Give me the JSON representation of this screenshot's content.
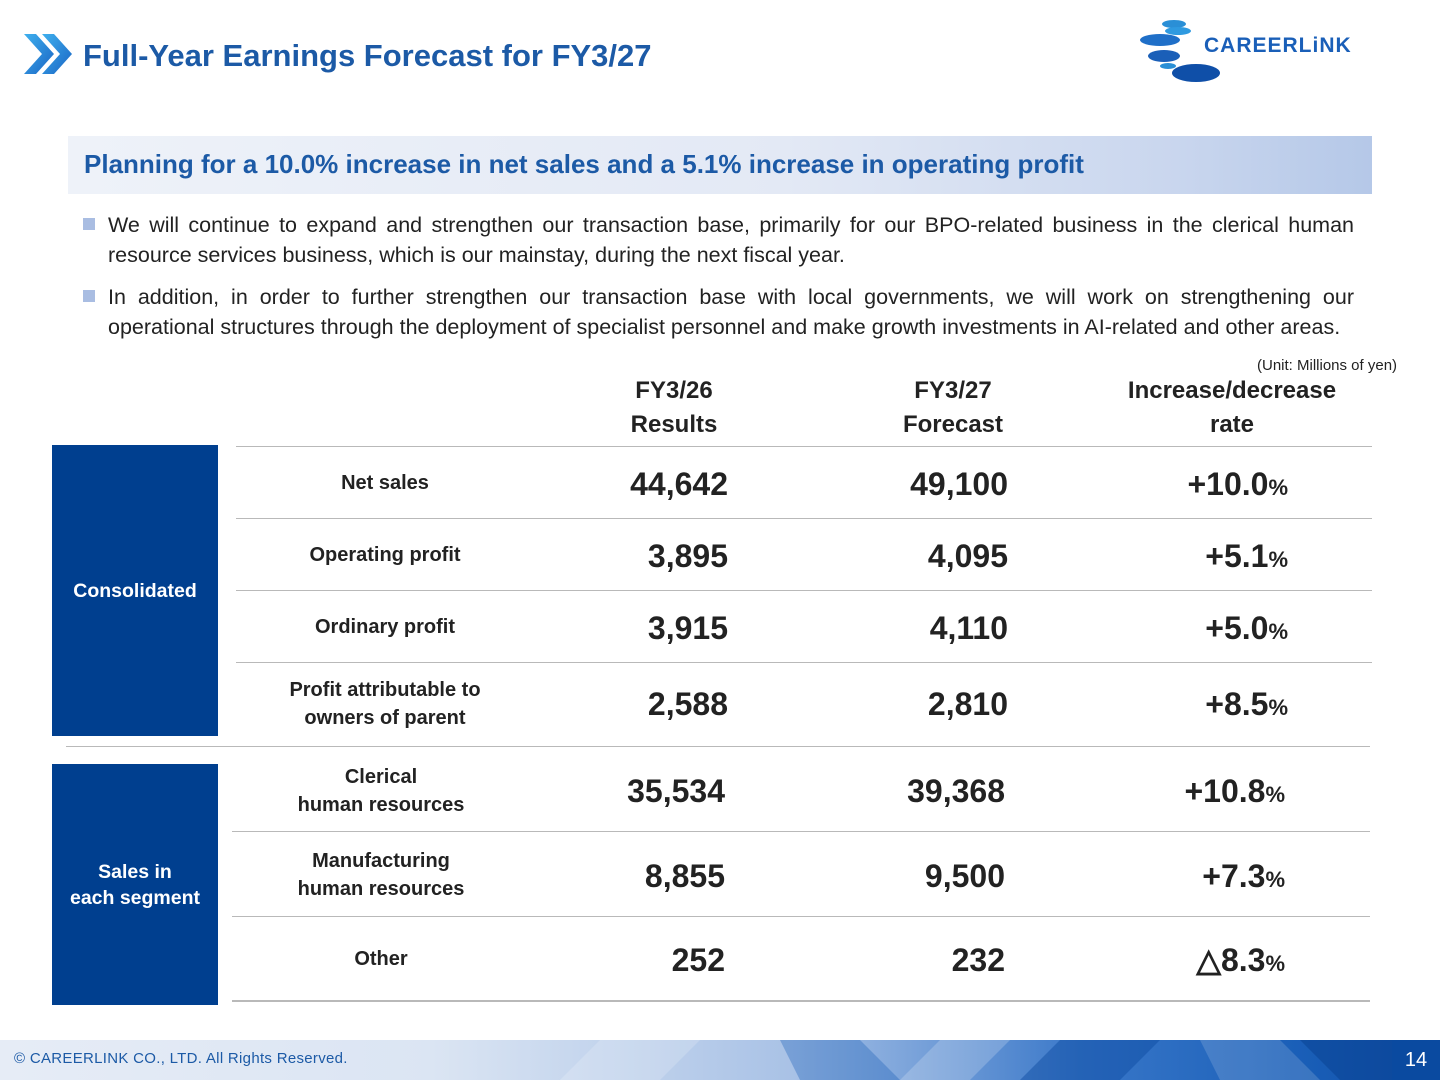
{
  "header": {
    "title": "Full-Year Earnings Forecast for FY3/27",
    "logo_text": "CAREERLiNK"
  },
  "band": {
    "text": "Planning for a 10.0% increase in net sales and a 5.1% increase in operating profit"
  },
  "bullets": [
    "We will continue to expand and strengthen our transaction base, primarily for our BPO-related business in the clerical human resource services business, which is our mainstay, during the next fiscal year.",
    "In addition, in order to further strengthen our transaction base with local governments, we will work on strengthening our operational structures through the deployment of specialist personnel and make growth investments in AI-related and other areas."
  ],
  "unit_note": "(Unit: Millions of yen)",
  "table": {
    "columns": [
      {
        "line1": "FY3/26",
        "line2": "Results"
      },
      {
        "line1": "FY3/27",
        "line2": "Forecast"
      },
      {
        "line1": "Increase/decrease",
        "line2": "rate"
      }
    ],
    "consolidated": {
      "label": "Consolidated",
      "rows": [
        {
          "label": "Net sales",
          "fy26": "44,642",
          "fy27": "49,100",
          "rate": "+10.0",
          "unit": "%"
        },
        {
          "label": "Operating profit",
          "fy26": "3,895",
          "fy27": "4,095",
          "rate": "+5.1",
          "unit": "%"
        },
        {
          "label": "Ordinary profit",
          "fy26": "3,915",
          "fy27": "4,110",
          "rate": "+5.0",
          "unit": "%"
        },
        {
          "label_line1": "Profit attributable to",
          "label_line2": "owners of parent",
          "fy26": "2,588",
          "fy27": "2,810",
          "rate": "+8.5",
          "unit": "%"
        }
      ]
    },
    "segments": {
      "label_line1": "Sales in",
      "label_line2": "each segment",
      "rows": [
        {
          "label_line1": "Clerical",
          "label_line2": "human resources",
          "fy26": "35,534",
          "fy27": "39,368",
          "rate": "+10.8",
          "unit": "%"
        },
        {
          "label_line1": "Manufacturing",
          "label_line2": "human resources",
          "fy26": "8,855",
          "fy27": "9,500",
          "rate": "+7.3",
          "unit": "%"
        },
        {
          "label": "Other",
          "fy26": "252",
          "fy27": "232",
          "rate": "△8.3",
          "unit": "%"
        }
      ]
    }
  },
  "footer": {
    "copyright": "© CAREERLINK CO., LTD. All Rights Reserved.",
    "page_number": "14"
  },
  "colors": {
    "title_blue": "#1c5aa6",
    "box_navy": "#003f8f",
    "bullet_square": "#a9bde2"
  }
}
